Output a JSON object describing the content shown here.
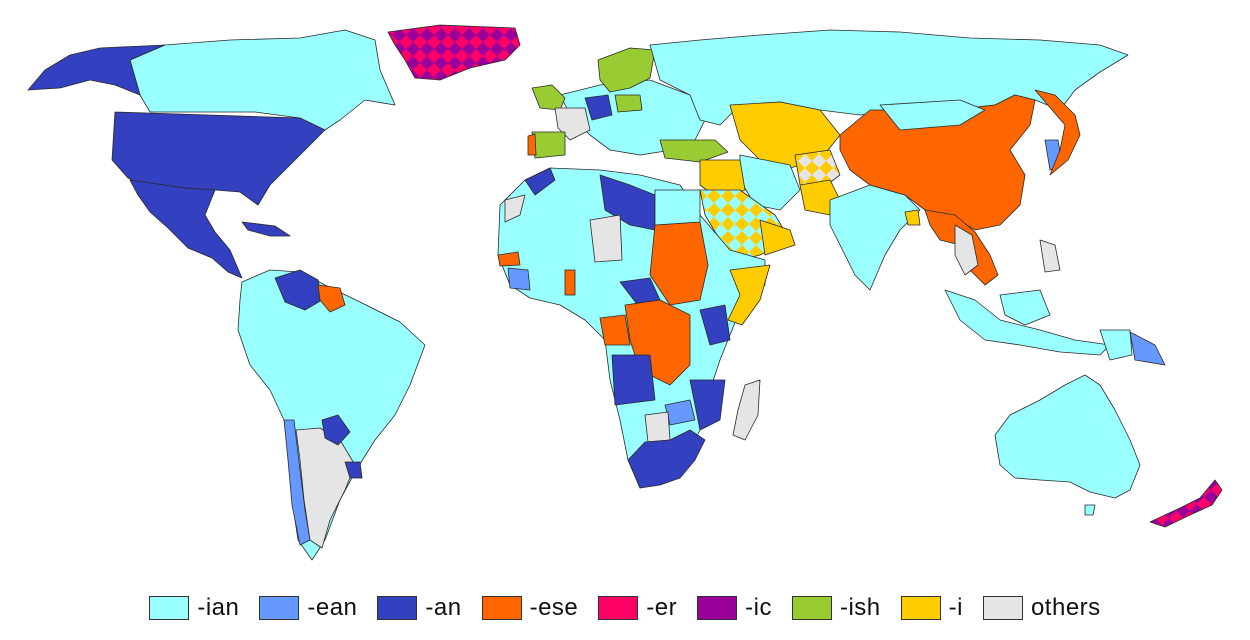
{
  "colors": {
    "ian": "#99FFFF",
    "ean": "#6699FF",
    "an": "#3340BF",
    "ese": "#FF6600",
    "er": "#FF0066",
    "ic": "#990099",
    "ish": "#99CC33",
    "i": "#FFCC00",
    "others": "#E5E5E5"
  },
  "legend": [
    {
      "key": "ian",
      "label": "-ian"
    },
    {
      "key": "ean",
      "label": "-ean"
    },
    {
      "key": "an",
      "label": "-an"
    },
    {
      "key": "ese",
      "label": "-ese"
    },
    {
      "key": "er",
      "label": "-er"
    },
    {
      "key": "ic",
      "label": "-ic"
    },
    {
      "key": "ish",
      "label": "-ish"
    },
    {
      "key": "i",
      "label": "-i"
    },
    {
      "key": "others",
      "label": "others"
    }
  ]
}
